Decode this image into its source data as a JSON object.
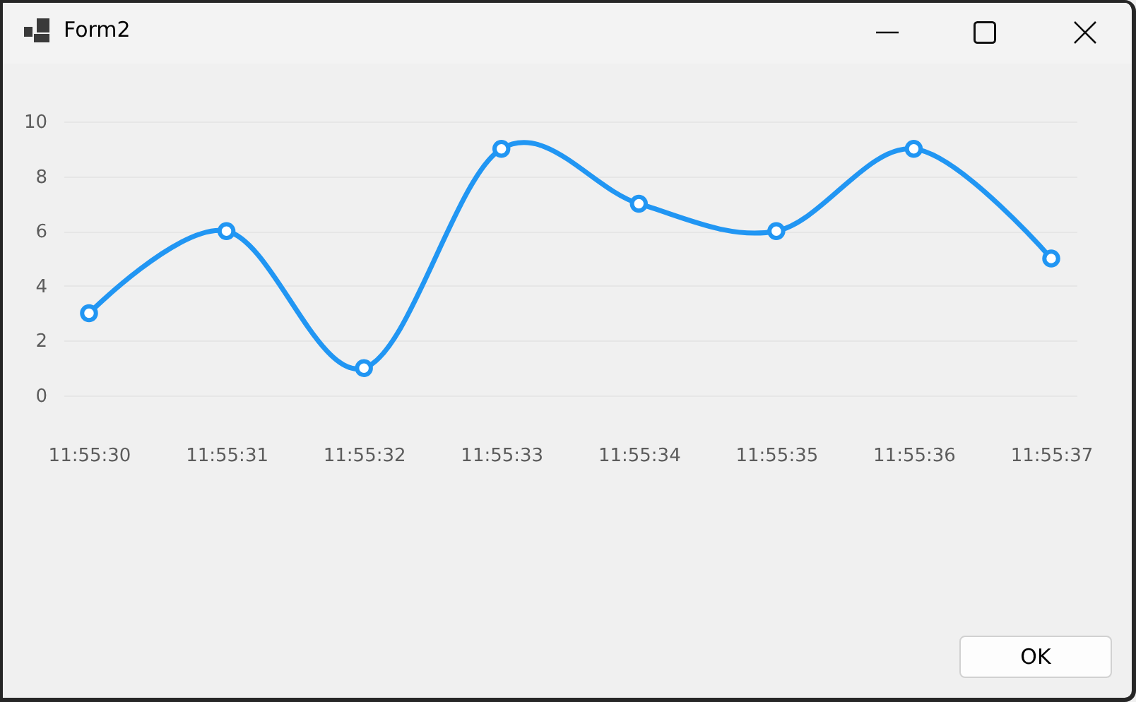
{
  "chart_data": {
    "type": "line",
    "title": "Form2",
    "categories": [
      "11:55:30",
      "11:55:31",
      "11:55:32",
      "11:55:33",
      "11:55:34",
      "11:55:35",
      "11:55:36",
      "11:55:37"
    ],
    "series": [
      {
        "color": "#2196f3",
        "values": [
          3,
          6,
          1,
          9,
          7,
          6,
          9,
          5
        ]
      }
    ],
    "ylim": [
      0,
      10
    ],
    "yticks": [
      0,
      2,
      4,
      6,
      8,
      10
    ],
    "grid": "y",
    "marker": "circle",
    "line_style": "solid",
    "annotations": [
      "OK"
    ]
  }
}
